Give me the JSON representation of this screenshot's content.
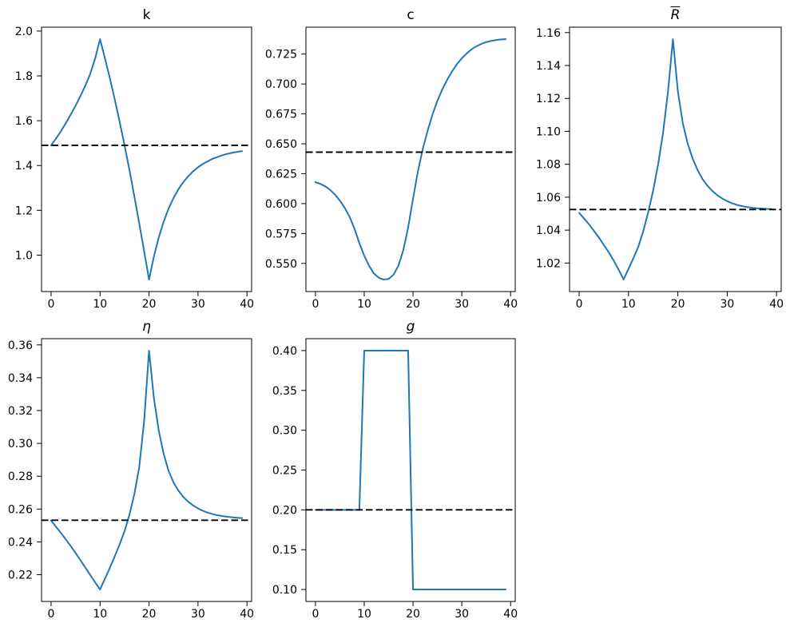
{
  "figure": {
    "background": "#ffffff",
    "series_color": "#1f77b4",
    "steady_state_color": "#000000",
    "steady_state_linestyle": "dashed"
  },
  "chart_data": {
    "type": "line",
    "layout": "2x3 grid, 5 plots, bottom-right empty",
    "grid_lines": "off",
    "legend": "none",
    "x_values": [
      0,
      1,
      2,
      3,
      4,
      5,
      6,
      7,
      8,
      9,
      10,
      11,
      12,
      13,
      14,
      15,
      16,
      17,
      18,
      19,
      20,
      21,
      22,
      23,
      24,
      25,
      26,
      27,
      28,
      29,
      30,
      31,
      32,
      33,
      34,
      35,
      36,
      37,
      38,
      39
    ],
    "xlim": [
      -1.95,
      40.95
    ],
    "xtick_values": [
      0,
      10,
      20,
      30,
      40
    ],
    "xtick_labels": [
      "0",
      "10",
      "20",
      "30",
      "40"
    ],
    "charts": [
      {
        "id": "k",
        "title": "k",
        "title_italic": false,
        "values": [
          1.49,
          1.52,
          1.553,
          1.589,
          1.627,
          1.667,
          1.71,
          1.757,
          1.81,
          1.878,
          1.964,
          1.878,
          1.79,
          1.695,
          1.595,
          1.49,
          1.38,
          1.263,
          1.142,
          1.018,
          0.891,
          0.995,
          1.08,
          1.15,
          1.208,
          1.255,
          1.294,
          1.326,
          1.352,
          1.374,
          1.392,
          1.407,
          1.419,
          1.43,
          1.438,
          1.446,
          1.452,
          1.457,
          1.461,
          1.464
        ],
        "steady_state": 1.49,
        "ylim": [
          0.8375,
          2.0175
        ],
        "ytick_values": [
          1.0,
          1.2,
          1.4,
          1.6,
          1.8,
          2.0
        ],
        "ytick_labels": [
          "1.0",
          "1.2",
          "1.4",
          "1.6",
          "1.8",
          "2.0"
        ]
      },
      {
        "id": "c",
        "title": "c",
        "title_italic": false,
        "values": [
          0.618,
          0.6165,
          0.6145,
          0.6115,
          0.6075,
          0.6025,
          0.5965,
          0.589,
          0.579,
          0.567,
          0.5565,
          0.548,
          0.5415,
          0.538,
          0.5365,
          0.537,
          0.5405,
          0.548,
          0.561,
          0.58,
          0.604,
          0.627,
          0.6455,
          0.661,
          0.6745,
          0.686,
          0.6955,
          0.7035,
          0.7105,
          0.7165,
          0.7215,
          0.7255,
          0.729,
          0.7315,
          0.7335,
          0.735,
          0.736,
          0.7367,
          0.7372,
          0.7375
        ],
        "steady_state": 0.643,
        "ylim": [
          0.5265,
          0.7475
        ],
        "ytick_values": [
          0.55,
          0.575,
          0.6,
          0.625,
          0.65,
          0.675,
          0.7,
          0.725
        ],
        "ytick_labels": [
          "0.550",
          "0.575",
          "0.600",
          "0.625",
          "0.650",
          "0.675",
          "0.700",
          "0.725"
        ]
      },
      {
        "id": "R_bar",
        "title": "R̄",
        "title_italic": true,
        "values": [
          1.0505,
          1.047,
          1.0435,
          1.0395,
          1.0355,
          1.031,
          1.0265,
          1.0215,
          1.016,
          1.01,
          1.0165,
          1.023,
          1.03,
          1.0395,
          1.051,
          1.064,
          1.08,
          1.099,
          1.124,
          1.156,
          1.1245,
          1.105,
          1.0925,
          1.0835,
          1.0765,
          1.071,
          1.067,
          1.0638,
          1.0612,
          1.0592,
          1.0576,
          1.0563,
          1.0553,
          1.0546,
          1.054,
          1.0536,
          1.0533,
          1.0531,
          1.0529,
          1.0528
        ],
        "steady_state": 1.0525,
        "ylim": [
          1.0027,
          1.1633
        ],
        "ytick_values": [
          1.02,
          1.04,
          1.06,
          1.08,
          1.1,
          1.12,
          1.14,
          1.16
        ],
        "ytick_labels": [
          "1.02",
          "1.04",
          "1.06",
          "1.08",
          "1.10",
          "1.12",
          "1.14",
          "1.16"
        ]
      },
      {
        "id": "eta",
        "title": "η",
        "title_italic": true,
        "values": [
          0.253,
          0.2492,
          0.2455,
          0.2415,
          0.2375,
          0.2332,
          0.2288,
          0.2243,
          0.2198,
          0.2153,
          0.211,
          0.2175,
          0.2242,
          0.2312,
          0.2385,
          0.2465,
          0.2565,
          0.269,
          0.2855,
          0.3135,
          0.3565,
          0.3275,
          0.3075,
          0.2935,
          0.2832,
          0.2762,
          0.2712,
          0.2674,
          0.2645,
          0.2622,
          0.2604,
          0.2589,
          0.2578,
          0.2569,
          0.2562,
          0.2557,
          0.2553,
          0.255,
          0.2547,
          0.2545
        ],
        "steady_state": 0.2532,
        "ylim": [
          0.2037,
          0.3638
        ],
        "ytick_values": [
          0.22,
          0.24,
          0.26,
          0.28,
          0.3,
          0.32,
          0.34,
          0.36
        ],
        "ytick_labels": [
          "0.22",
          "0.24",
          "0.26",
          "0.28",
          "0.30",
          "0.32",
          "0.34",
          "0.36"
        ]
      },
      {
        "id": "g",
        "title": "g",
        "title_italic": true,
        "values": [
          0.2,
          0.2,
          0.2,
          0.2,
          0.2,
          0.2,
          0.2,
          0.2,
          0.2,
          0.2,
          0.4,
          0.4,
          0.4,
          0.4,
          0.4,
          0.4,
          0.4,
          0.4,
          0.4,
          0.4,
          0.1,
          0.1,
          0.1,
          0.1,
          0.1,
          0.1,
          0.1,
          0.1,
          0.1,
          0.1,
          0.1,
          0.1,
          0.1,
          0.1,
          0.1,
          0.1,
          0.1,
          0.1,
          0.1,
          0.1
        ],
        "steady_state": 0.2,
        "ylim": [
          0.085,
          0.415
        ],
        "ytick_values": [
          0.1,
          0.15,
          0.2,
          0.25,
          0.3,
          0.35,
          0.4
        ],
        "ytick_labels": [
          "0.10",
          "0.15",
          "0.20",
          "0.25",
          "0.30",
          "0.35",
          "0.40"
        ]
      }
    ]
  }
}
